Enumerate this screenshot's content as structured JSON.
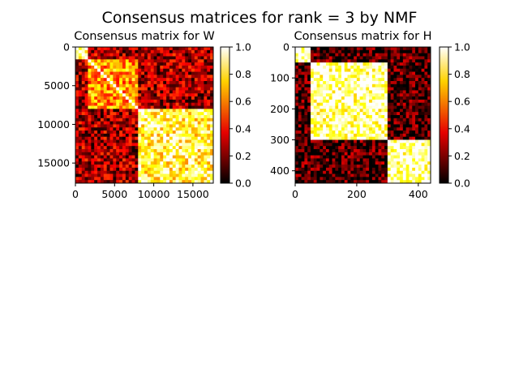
{
  "suptitle": "Consensus matrices for rank = 3 by NMF",
  "colors": {
    "cmap": "hot",
    "cmap_stops": [
      "#000000",
      "#e60000",
      "#ffd200",
      "#ffffff"
    ],
    "axis": "#000000",
    "background": "#ffffff"
  },
  "chart_data": [
    {
      "type": "heatmap",
      "title": "Consensus matrix for W",
      "xlim": [
        0,
        17600
      ],
      "ylim": [
        17600,
        0
      ],
      "y_inverted": true,
      "xticks": [
        0,
        5000,
        10000,
        15000
      ],
      "xtick_labels": [
        "0",
        "5000",
        "10000",
        "15000"
      ],
      "yticks": [
        0,
        5000,
        10000,
        15000
      ],
      "ytick_labels": [
        "0",
        "5000",
        "10000",
        "15000"
      ],
      "blocks": [
        {
          "range": [
            0,
            1500
          ],
          "within_value": 0.85
        },
        {
          "range": [
            1500,
            8000
          ],
          "within_value": 0.6
        },
        {
          "range": [
            8000,
            17600
          ],
          "within_value": 0.8
        }
      ],
      "between_value": 0.25,
      "colorbar": {
        "range": [
          0.0,
          1.0
        ],
        "ticks": [
          0.0,
          0.2,
          0.4,
          0.6,
          0.8,
          1.0
        ],
        "tick_labels": [
          "0.0",
          "0.2",
          "0.4",
          "0.6",
          "0.8",
          "1.0"
        ]
      }
    },
    {
      "type": "heatmap",
      "title": "Consensus matrix for H",
      "xlim": [
        0,
        440
      ],
      "ylim": [
        440,
        0
      ],
      "y_inverted": true,
      "xticks": [
        0,
        200,
        400
      ],
      "xtick_labels": [
        "0",
        "200",
        "400"
      ],
      "yticks": [
        0,
        100,
        200,
        300,
        400
      ],
      "ytick_labels": [
        "0",
        "100",
        "200",
        "300",
        "400"
      ],
      "blocks": [
        {
          "range": [
            0,
            50
          ],
          "within_value": 0.95
        },
        {
          "range": [
            50,
            300
          ],
          "within_value": 0.9
        },
        {
          "range": [
            300,
            440
          ],
          "within_value": 0.92
        }
      ],
      "between_value": 0.1,
      "colorbar": {
        "range": [
          0.0,
          1.0
        ],
        "ticks": [
          0.0,
          0.2,
          0.4,
          0.6,
          0.8,
          1.0
        ],
        "tick_labels": [
          "0.0",
          "0.2",
          "0.4",
          "0.6",
          "0.8",
          "1.0"
        ]
      }
    }
  ]
}
